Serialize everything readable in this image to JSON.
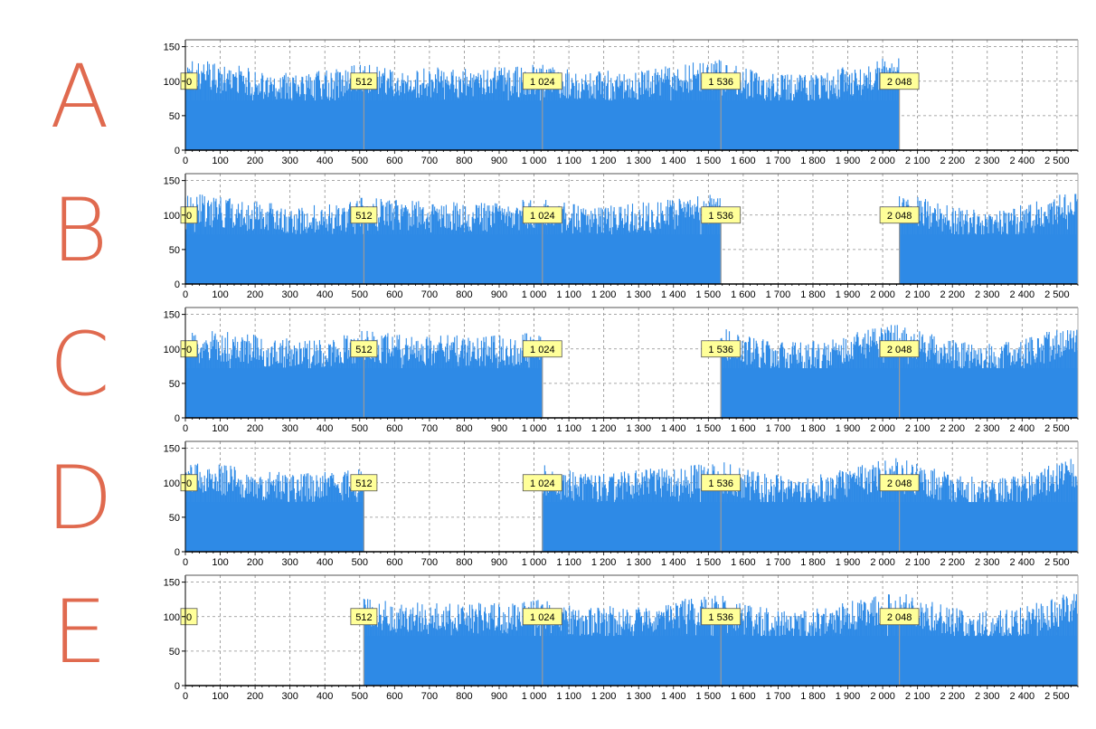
{
  "colors": {
    "bar": "#2e8ae6",
    "bar_dark": "#1f73c9",
    "grid": "#8c8c8c",
    "marker_fill": "#ffff99",
    "marker_line": "#9a9a9a",
    "letter": "#e06a4f",
    "axis": "#000000"
  },
  "chart_data": [
    {
      "type": "bar",
      "label": "A",
      "x_range": [
        0,
        2560
      ],
      "ylim": [
        0,
        160
      ],
      "y_ticks": [
        0,
        50,
        100,
        150
      ],
      "x_ticks": [
        "0",
        "100",
        "200",
        "300",
        "400",
        "500",
        "600",
        "700",
        "800",
        "900",
        "1 000",
        "1 100",
        "1 200",
        "1 300",
        "1 400",
        "1 500",
        "1 600",
        "1 700",
        "1 800",
        "1 900",
        "2 000",
        "2 100",
        "2 200",
        "2 300",
        "2 400",
        "2 500"
      ],
      "filled_segments": [
        [
          0,
          2048
        ]
      ],
      "markers": [
        {
          "x": 0,
          "label": "0"
        },
        {
          "x": 512,
          "label": "512"
        },
        {
          "x": 1024,
          "label": "1 024"
        },
        {
          "x": 1536,
          "label": "1 536"
        },
        {
          "x": 2048,
          "label": "2 048"
        }
      ],
      "grid": true
    },
    {
      "type": "bar",
      "label": "B",
      "x_range": [
        0,
        2560
      ],
      "ylim": [
        0,
        160
      ],
      "y_ticks": [
        0,
        50,
        100,
        150
      ],
      "x_ticks": [
        "0",
        "100",
        "200",
        "300",
        "400",
        "500",
        "600",
        "700",
        "800",
        "900",
        "1 000",
        "1 100",
        "1 200",
        "1 300",
        "1 400",
        "1 500",
        "1 600",
        "1 700",
        "1 800",
        "1 900",
        "2 000",
        "2 100",
        "2 200",
        "2 300",
        "2 400",
        "2 500"
      ],
      "filled_segments": [
        [
          0,
          1536
        ],
        [
          2048,
          2560
        ]
      ],
      "markers": [
        {
          "x": 0,
          "label": "0"
        },
        {
          "x": 512,
          "label": "512"
        },
        {
          "x": 1024,
          "label": "1 024"
        },
        {
          "x": 1536,
          "label": "1 536"
        },
        {
          "x": 2048,
          "label": "2 048"
        }
      ],
      "grid": true
    },
    {
      "type": "bar",
      "label": "C",
      "x_range": [
        0,
        2560
      ],
      "ylim": [
        0,
        160
      ],
      "y_ticks": [
        0,
        50,
        100,
        150
      ],
      "x_ticks": [
        "0",
        "100",
        "200",
        "300",
        "400",
        "500",
        "600",
        "700",
        "800",
        "900",
        "1 000",
        "1 100",
        "1 200",
        "1 300",
        "1 400",
        "1 500",
        "1 600",
        "1 700",
        "1 800",
        "1 900",
        "2 000",
        "2 100",
        "2 200",
        "2 300",
        "2 400",
        "2 500"
      ],
      "filled_segments": [
        [
          0,
          1024
        ],
        [
          1536,
          2560
        ]
      ],
      "markers": [
        {
          "x": 0,
          "label": "0"
        },
        {
          "x": 512,
          "label": "512"
        },
        {
          "x": 1024,
          "label": "1 024"
        },
        {
          "x": 1536,
          "label": "1 536"
        },
        {
          "x": 2048,
          "label": "2 048"
        }
      ],
      "grid": true
    },
    {
      "type": "bar",
      "label": "D",
      "x_range": [
        0,
        2560
      ],
      "ylim": [
        0,
        160
      ],
      "y_ticks": [
        0,
        50,
        100,
        150
      ],
      "x_ticks": [
        "0",
        "100",
        "200",
        "300",
        "400",
        "500",
        "600",
        "700",
        "800",
        "900",
        "1 000",
        "1 100",
        "1 200",
        "1 300",
        "1 400",
        "1 500",
        "1 600",
        "1 700",
        "1 800",
        "1 900",
        "2 000",
        "2 100",
        "2 200",
        "2 300",
        "2 400",
        "2 500"
      ],
      "filled_segments": [
        [
          0,
          512
        ],
        [
          1024,
          2560
        ]
      ],
      "markers": [
        {
          "x": 0,
          "label": "0"
        },
        {
          "x": 512,
          "label": "512"
        },
        {
          "x": 1024,
          "label": "1 024"
        },
        {
          "x": 1536,
          "label": "1 536"
        },
        {
          "x": 2048,
          "label": "2 048"
        }
      ],
      "grid": true
    },
    {
      "type": "bar",
      "label": "E",
      "x_range": [
        0,
        2560
      ],
      "ylim": [
        0,
        160
      ],
      "y_ticks": [
        0,
        50,
        100,
        150
      ],
      "x_ticks": [
        "0",
        "100",
        "200",
        "300",
        "400",
        "500",
        "600",
        "700",
        "800",
        "900",
        "1 000",
        "1 100",
        "1 200",
        "1 300",
        "1 400",
        "1 500",
        "1 600",
        "1 700",
        "1 800",
        "1 900",
        "2 000",
        "2 100",
        "2 200",
        "2 300",
        "2 400",
        "2 500"
      ],
      "filled_segments": [
        [
          512,
          2560
        ]
      ],
      "markers": [
        {
          "x": 0,
          "label": "0"
        },
        {
          "x": 512,
          "label": "512"
        },
        {
          "x": 1024,
          "label": "1 024"
        },
        {
          "x": 1536,
          "label": "1 536"
        },
        {
          "x": 2048,
          "label": "2 048"
        }
      ],
      "grid": true
    }
  ]
}
